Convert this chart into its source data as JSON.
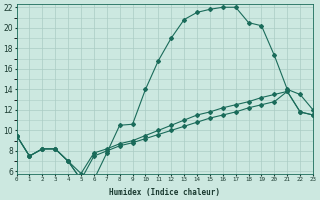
{
  "xlabel": "Humidex (Indice chaleur)",
  "bg_color": "#cce8e0",
  "grid_color": "#aaccC4",
  "line_color": "#1a6b5a",
  "xmin": 0,
  "xmax": 23,
  "ymin": 6,
  "ymax": 22,
  "curve1_x": [
    0,
    1,
    2,
    3,
    4,
    5,
    6,
    7,
    8,
    9,
    10,
    11,
    12,
    13,
    14,
    15,
    16,
    17,
    18,
    19,
    20,
    21,
    22,
    23
  ],
  "curve1_y": [
    9.5,
    7.5,
    8.2,
    8.2,
    7.0,
    5.2,
    5.2,
    7.8,
    10.5,
    10.6,
    14.0,
    16.8,
    19.0,
    20.8,
    21.5,
    21.8,
    22.0,
    22.0,
    20.5,
    20.2,
    17.3,
    14.0,
    13.5,
    12.0
  ],
  "curve2_x": [
    0,
    1,
    2,
    3,
    4,
    5,
    6,
    7,
    8,
    9,
    10,
    11,
    12,
    13,
    14,
    15,
    16,
    17,
    18,
    19,
    20,
    21,
    22,
    23
  ],
  "curve2_y": [
    9.5,
    7.5,
    8.2,
    8.2,
    7.0,
    5.2,
    7.5,
    8.0,
    8.5,
    8.8,
    9.2,
    9.6,
    10.0,
    10.4,
    10.8,
    11.2,
    11.5,
    11.8,
    12.2,
    12.5,
    12.8,
    13.8,
    11.8,
    11.5
  ],
  "curve3_x": [
    0,
    1,
    2,
    3,
    4,
    5,
    6,
    7,
    8,
    9,
    10,
    11,
    12,
    13,
    14,
    15,
    16,
    17,
    18,
    19,
    20,
    21,
    22,
    23
  ],
  "curve3_y": [
    9.5,
    7.5,
    8.2,
    8.2,
    7.0,
    5.8,
    7.8,
    8.2,
    8.7,
    9.0,
    9.5,
    10.0,
    10.5,
    11.0,
    11.5,
    11.8,
    12.2,
    12.5,
    12.8,
    13.2,
    13.5,
    13.8,
    11.8,
    11.5
  ],
  "xtick_labels": [
    "0",
    "1",
    "2",
    "3",
    "4",
    "5",
    "6",
    "7",
    "8",
    "9",
    "10",
    "11",
    "12",
    "13",
    "14",
    "15",
    "16",
    "17",
    "18",
    "19",
    "20",
    "21",
    "22",
    "23"
  ],
  "ytick_labels": [
    "6",
    "8",
    "10",
    "12",
    "14",
    "16",
    "18",
    "20",
    "22"
  ],
  "ytick_vals": [
    6,
    8,
    10,
    12,
    14,
    16,
    18,
    20,
    22
  ]
}
